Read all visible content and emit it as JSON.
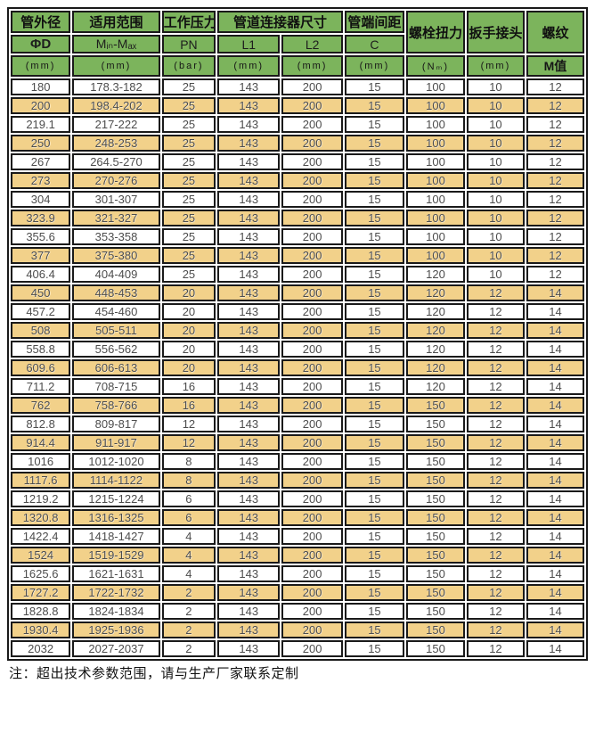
{
  "colors": {
    "header_green": "#7CB45C",
    "row_tan": "#F2D18A",
    "border": "#1A1A1A",
    "data_text": "#4D4D4D"
  },
  "table": {
    "header": {
      "col1": {
        "title": "管外径",
        "sub": "ΦD",
        "unit": "(mm)"
      },
      "col2": {
        "title": "适用范围",
        "sub": "Mᵢₙ-Mₐₓ",
        "unit": "(mm)"
      },
      "col3": {
        "title": "工作压力",
        "sub": "PN",
        "unit": "(bar)"
      },
      "col45": {
        "title": "管道连接器尺寸"
      },
      "col4": {
        "sub": "L1",
        "unit": "(mm)"
      },
      "col5": {
        "sub": "L2",
        "unit": "(mm)"
      },
      "col6": {
        "title": "管端间距",
        "sub": "C",
        "unit": "(mm)"
      },
      "col7": {
        "title": "螺栓扭力",
        "unit": "(Nₘ)"
      },
      "col8": {
        "title": "扳手接头",
        "unit": "(mm)"
      },
      "col9": {
        "title": "螺纹",
        "unit": "M值"
      }
    },
    "rows": [
      [
        "180",
        "178.3-182",
        "25",
        "143",
        "200",
        "15",
        "100",
        "10",
        "12"
      ],
      [
        "200",
        "198.4-202",
        "25",
        "143",
        "200",
        "15",
        "100",
        "10",
        "12"
      ],
      [
        "219.1",
        "217-222",
        "25",
        "143",
        "200",
        "15",
        "100",
        "10",
        "12"
      ],
      [
        "250",
        "248-253",
        "25",
        "143",
        "200",
        "15",
        "100",
        "10",
        "12"
      ],
      [
        "267",
        "264.5-270",
        "25",
        "143",
        "200",
        "15",
        "100",
        "10",
        "12"
      ],
      [
        "273",
        "270-276",
        "25",
        "143",
        "200",
        "15",
        "100",
        "10",
        "12"
      ],
      [
        "304",
        "301-307",
        "25",
        "143",
        "200",
        "15",
        "100",
        "10",
        "12"
      ],
      [
        "323.9",
        "321-327",
        "25",
        "143",
        "200",
        "15",
        "100",
        "10",
        "12"
      ],
      [
        "355.6",
        "353-358",
        "25",
        "143",
        "200",
        "15",
        "100",
        "10",
        "12"
      ],
      [
        "377",
        "375-380",
        "25",
        "143",
        "200",
        "15",
        "100",
        "10",
        "12"
      ],
      [
        "406.4",
        "404-409",
        "25",
        "143",
        "200",
        "15",
        "120",
        "10",
        "12"
      ],
      [
        "450",
        "448-453",
        "20",
        "143",
        "200",
        "15",
        "120",
        "12",
        "14"
      ],
      [
        "457.2",
        "454-460",
        "20",
        "143",
        "200",
        "15",
        "120",
        "12",
        "14"
      ],
      [
        "508",
        "505-511",
        "20",
        "143",
        "200",
        "15",
        "120",
        "12",
        "14"
      ],
      [
        "558.8",
        "556-562",
        "20",
        "143",
        "200",
        "15",
        "120",
        "12",
        "14"
      ],
      [
        "609.6",
        "606-613",
        "20",
        "143",
        "200",
        "15",
        "120",
        "12",
        "14"
      ],
      [
        "711.2",
        "708-715",
        "16",
        "143",
        "200",
        "15",
        "120",
        "12",
        "14"
      ],
      [
        "762",
        "758-766",
        "16",
        "143",
        "200",
        "15",
        "150",
        "12",
        "14"
      ],
      [
        "812.8",
        "809-817",
        "12",
        "143",
        "200",
        "15",
        "150",
        "12",
        "14"
      ],
      [
        "914.4",
        "911-917",
        "12",
        "143",
        "200",
        "15",
        "150",
        "12",
        "14"
      ],
      [
        "1016",
        "1012-1020",
        "8",
        "143",
        "200",
        "15",
        "150",
        "12",
        "14"
      ],
      [
        "1117.6",
        "1114-1122",
        "8",
        "143",
        "200",
        "15",
        "150",
        "12",
        "14"
      ],
      [
        "1219.2",
        "1215-1224",
        "6",
        "143",
        "200",
        "15",
        "150",
        "12",
        "14"
      ],
      [
        "1320.8",
        "1316-1325",
        "6",
        "143",
        "200",
        "15",
        "150",
        "12",
        "14"
      ],
      [
        "1422.4",
        "1418-1427",
        "4",
        "143",
        "200",
        "15",
        "150",
        "12",
        "14"
      ],
      [
        "1524",
        "1519-1529",
        "4",
        "143",
        "200",
        "15",
        "150",
        "12",
        "14"
      ],
      [
        "1625.6",
        "1621-1631",
        "4",
        "143",
        "200",
        "15",
        "150",
        "12",
        "14"
      ],
      [
        "1727.2",
        "1722-1732",
        "2",
        "143",
        "200",
        "15",
        "150",
        "12",
        "14"
      ],
      [
        "1828.8",
        "1824-1834",
        "2",
        "143",
        "200",
        "15",
        "150",
        "12",
        "14"
      ],
      [
        "1930.4",
        "1925-1936",
        "2",
        "143",
        "200",
        "15",
        "150",
        "12",
        "14"
      ],
      [
        "2032",
        "2027-2037",
        "2",
        "143",
        "200",
        "15",
        "150",
        "12",
        "14"
      ]
    ]
  },
  "note": "注：超出技术参数范围，请与生产厂家联系定制"
}
